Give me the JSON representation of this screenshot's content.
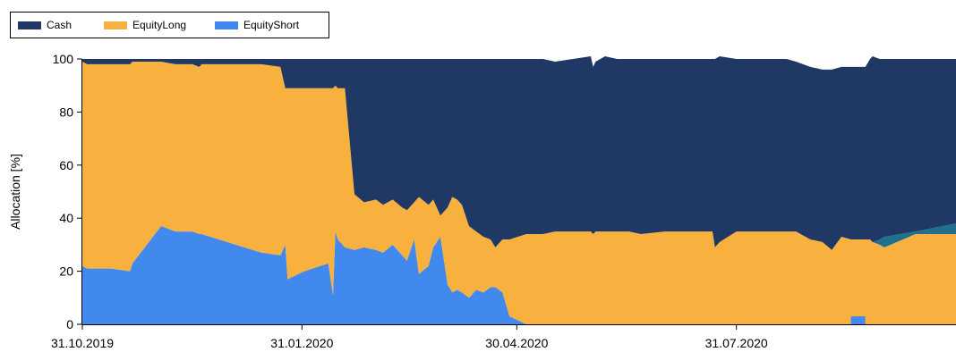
{
  "chart_data": {
    "type": "area",
    "stacked": true,
    "ylabel": "Allocation [%]",
    "xlabel": "",
    "title": "",
    "ylim": [
      0,
      100
    ],
    "yticks": [
      0,
      20,
      40,
      60,
      80,
      100
    ],
    "xticks": [
      "31.10.2019",
      "31.01.2020",
      "30.04.2020",
      "31.07.2020"
    ],
    "xtick_dates": [
      "2019-10-31",
      "2020-01-31",
      "2020-04-30",
      "2020-07-31"
    ],
    "xlim": [
      "2019-10-31",
      "2020-10-31"
    ],
    "legend_position": "top-left",
    "grid": false,
    "x": [
      "2019-10-31",
      "2019-11-02",
      "2019-11-12",
      "2019-11-20",
      "2019-11-21",
      "2019-12-03",
      "2019-12-09",
      "2019-12-16",
      "2019-12-19",
      "2019-12-20",
      "2020-01-14",
      "2020-01-22",
      "2020-01-24",
      "2020-01-25",
      "2020-02-01",
      "2020-02-11",
      "2020-02-13",
      "2020-02-14",
      "2020-02-15",
      "2020-02-18",
      "2020-02-22",
      "2020-02-26",
      "2020-03-02",
      "2020-03-05",
      "2020-03-09",
      "2020-03-13",
      "2020-03-15",
      "2020-03-18",
      "2020-03-20",
      "2020-03-24",
      "2020-03-26",
      "2020-03-29",
      "2020-04-01",
      "2020-04-03",
      "2020-04-05",
      "2020-04-07",
      "2020-04-10",
      "2020-04-13",
      "2020-04-16",
      "2020-04-19",
      "2020-04-21",
      "2020-04-24",
      "2020-04-27",
      "2020-05-04",
      "2020-05-11",
      "2020-05-16",
      "2020-05-31",
      "2020-06-01",
      "2020-06-02",
      "2020-06-06",
      "2020-06-11",
      "2020-06-16",
      "2020-06-21",
      "2020-07-01",
      "2020-07-16",
      "2020-07-21",
      "2020-07-22",
      "2020-07-24",
      "2020-07-31",
      "2020-08-04",
      "2020-08-21",
      "2020-08-25",
      "2020-08-31",
      "2020-09-05",
      "2020-09-09",
      "2020-09-13",
      "2020-09-17",
      "2020-09-23",
      "2020-09-25",
      "2020-09-26",
      "2020-09-29",
      "2020-10-01",
      "2020-10-14",
      "2020-10-31"
    ],
    "series": [
      {
        "name": "Cash",
        "color": "#1f3864",
        "values": [
          1,
          2,
          2,
          2,
          1,
          1,
          2,
          2,
          3,
          2,
          2,
          3,
          11,
          11,
          11,
          11,
          11,
          10,
          11,
          11,
          51,
          54,
          53,
          55,
          53,
          56,
          57,
          54,
          52,
          55,
          53,
          59,
          56,
          52,
          53,
          55,
          63,
          65,
          67,
          68,
          71,
          68,
          68,
          66,
          66,
          64,
          66,
          63,
          64,
          66,
          65,
          65,
          66,
          65,
          65,
          65,
          71,
          70,
          65,
          65,
          65,
          64,
          65,
          65,
          68,
          64,
          65,
          65,
          68,
          70,
          68,
          67,
          65,
          62
        ]
      },
      {
        "name": "EquityLong",
        "color": "#f8b03e",
        "values": [
          77,
          77,
          77,
          78,
          76,
          62,
          63,
          63,
          63,
          64,
          71,
          71,
          59,
          72,
          69,
          66,
          78,
          55,
          57,
          60,
          21,
          17,
          19,
          18,
          17,
          18,
          19,
          14,
          29,
          23,
          18,
          8,
          29,
          36,
          34,
          33,
          27,
          22,
          21,
          18,
          15,
          20,
          29,
          34,
          34,
          35,
          35,
          34,
          35,
          35,
          35,
          35,
          34,
          35,
          35,
          35,
          29,
          31,
          35,
          35,
          35,
          35,
          32,
          31,
          28,
          33,
          32,
          32,
          32,
          31,
          30,
          29,
          34,
          34
        ]
      },
      {
        "name": "EquityShort",
        "color": "#4189ed",
        "values": [
          22,
          21,
          21,
          20,
          23,
          37,
          35,
          35,
          34,
          34,
          27,
          26,
          30,
          17,
          20,
          23,
          11,
          35,
          32,
          29,
          28,
          29,
          28,
          27,
          30,
          26,
          24,
          32,
          19,
          22,
          29,
          33,
          15,
          12,
          13,
          12,
          10,
          13,
          12,
          14,
          14,
          12,
          3,
          0,
          0,
          0,
          0,
          0,
          0,
          0,
          0,
          0,
          0,
          0,
          0,
          0,
          0,
          0,
          0,
          0,
          0,
          0,
          0,
          0,
          0,
          0,
          0,
          0,
          0,
          0,
          0,
          0,
          0,
          0
        ]
      },
      {
        "name": "",
        "color": "#1f6f8f",
        "legend": false,
        "values": [
          0,
          0,
          0,
          0,
          0,
          0,
          0,
          0,
          0,
          0,
          0,
          0,
          0,
          0,
          0,
          0,
          0,
          0,
          0,
          0,
          0,
          0,
          0,
          0,
          0,
          0,
          0,
          0,
          0,
          0,
          0,
          0,
          0,
          0,
          0,
          0,
          0,
          0,
          0,
          0,
          0,
          0,
          0,
          0,
          0,
          0,
          0,
          0,
          0,
          0,
          0,
          0,
          0,
          0,
          0,
          0,
          0,
          0,
          0,
          0,
          0,
          0,
          0,
          0,
          0,
          0,
          0,
          0,
          0,
          0,
          2,
          4,
          1,
          4
        ]
      }
    ],
    "annotations": [
      {
        "type": "band",
        "series_color": "#4189ed",
        "x_start": "2020-09-17",
        "x_end": "2020-09-23",
        "y_from": 0,
        "y_to": 3
      }
    ]
  },
  "legend": {
    "items": [
      {
        "label": "Cash",
        "color": "#1f3864"
      },
      {
        "label": "EquityLong",
        "color": "#f8b03e"
      },
      {
        "label": "EquityShort",
        "color": "#4189ed"
      }
    ]
  }
}
